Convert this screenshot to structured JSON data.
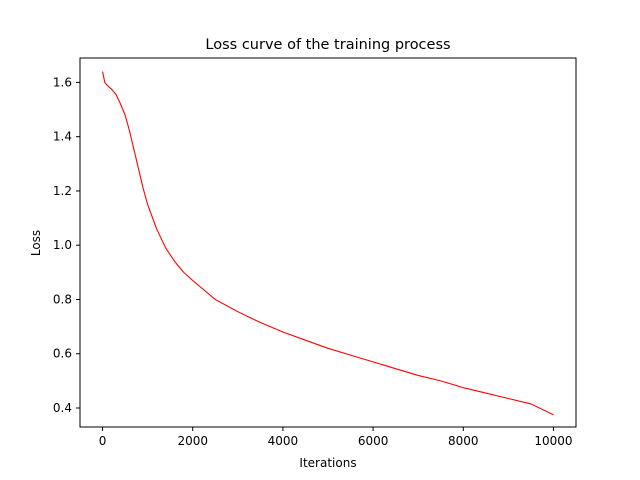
{
  "chart_data": {
    "type": "line",
    "title": "Loss curve of the training process",
    "xlabel": "Iterations",
    "ylabel": "Loss",
    "xlim": [
      -500,
      10500
    ],
    "ylim": [
      0.33,
      1.69
    ],
    "xticks": [
      0,
      2000,
      4000,
      6000,
      8000,
      10000
    ],
    "yticks": [
      0.4,
      0.6,
      0.8,
      1.0,
      1.2,
      1.4,
      1.6
    ],
    "ytick_labels": [
      "0.4",
      "0.6",
      "0.8",
      "1.0",
      "1.2",
      "1.4",
      "1.6"
    ],
    "grid": false,
    "series": [
      {
        "color": "#ff0000",
        "x": [
          0,
          50,
          100,
          200,
          300,
          400,
          500,
          600,
          700,
          800,
          900,
          1000,
          1200,
          1400,
          1600,
          1800,
          2000,
          2500,
          3000,
          3500,
          4000,
          4500,
          5000,
          5500,
          6000,
          6500,
          7000,
          7500,
          8000,
          8500,
          9000,
          9500,
          10000
        ],
        "y": [
          1.64,
          1.6,
          1.59,
          1.575,
          1.555,
          1.52,
          1.48,
          1.42,
          1.35,
          1.28,
          1.21,
          1.15,
          1.06,
          0.99,
          0.94,
          0.9,
          0.87,
          0.8,
          0.755,
          0.715,
          0.68,
          0.65,
          0.62,
          0.595,
          0.57,
          0.545,
          0.52,
          0.5,
          0.475,
          0.455,
          0.435,
          0.415,
          0.375
        ]
      }
    ]
  }
}
